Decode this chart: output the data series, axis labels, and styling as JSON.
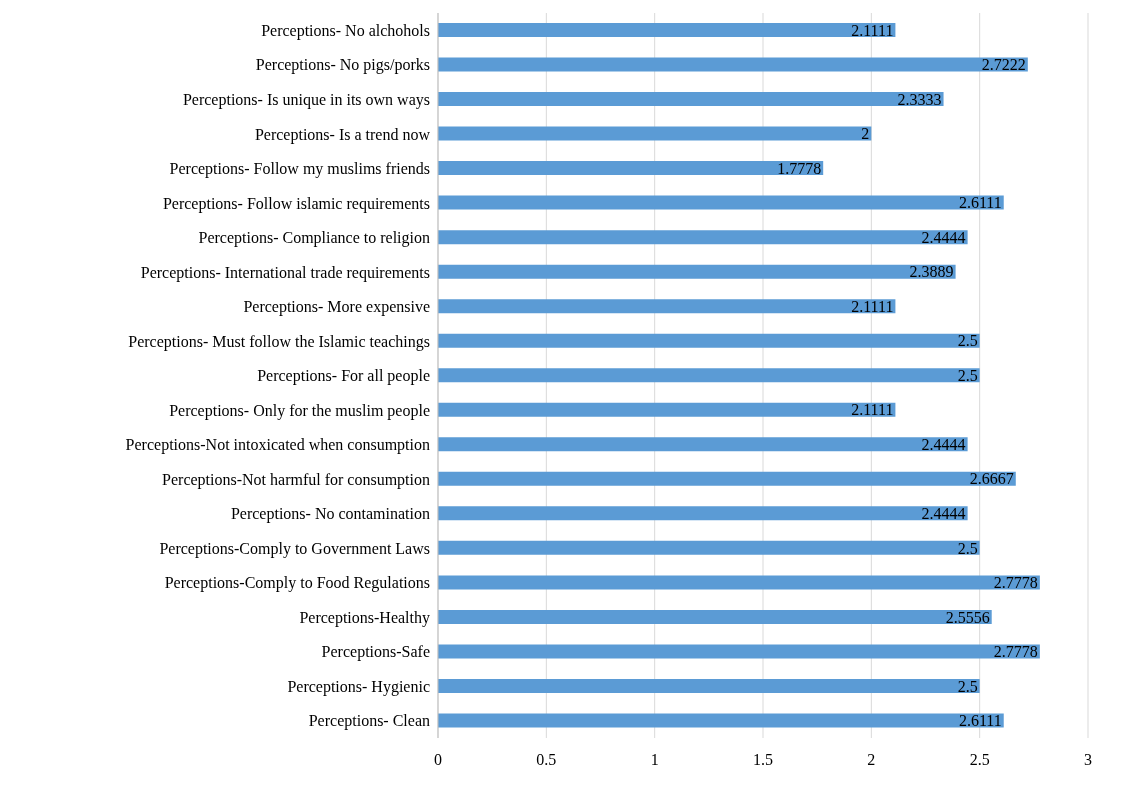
{
  "chart_data": {
    "type": "bar",
    "orientation": "horizontal",
    "categories": [
      "Perceptions- No alchohols",
      "Perceptions- No pigs/porks",
      "Perceptions- Is unique in its own ways",
      "Perceptions- Is a trend now",
      "Perceptions- Follow my muslims friends",
      "Perceptions- Follow islamic requirements",
      "Perceptions- Compliance to religion",
      "Perceptions- International trade requirements",
      "Perceptions- More expensive",
      "Perceptions- Must follow the Islamic teachings",
      "Perceptions- For all people",
      "Perceptions- Only for the muslim people",
      "Perceptions-Not intoxicated when consumption",
      "Perceptions-Not harmful for consumption",
      "Perceptions- No contamination",
      "Perceptions-Comply to Government Laws",
      "Perceptions-Comply to Food Regulations",
      "Perceptions-Healthy",
      "Perceptions-Safe",
      "Perceptions- Hygienic",
      "Perceptions- Clean"
    ],
    "values": [
      2.1111,
      2.7222,
      2.3333,
      2,
      1.7778,
      2.6111,
      2.4444,
      2.3889,
      2.1111,
      2.5,
      2.5,
      2.1111,
      2.4444,
      2.6667,
      2.4444,
      2.5,
      2.7778,
      2.5556,
      2.7778,
      2.5,
      2.6111
    ],
    "color": "#5b9bd5",
    "xlim": [
      0,
      3
    ],
    "xticks": [
      0,
      0.5,
      1,
      1.5,
      2,
      2.5,
      3
    ],
    "grid": "x",
    "data_labels": true,
    "legend": false
  }
}
